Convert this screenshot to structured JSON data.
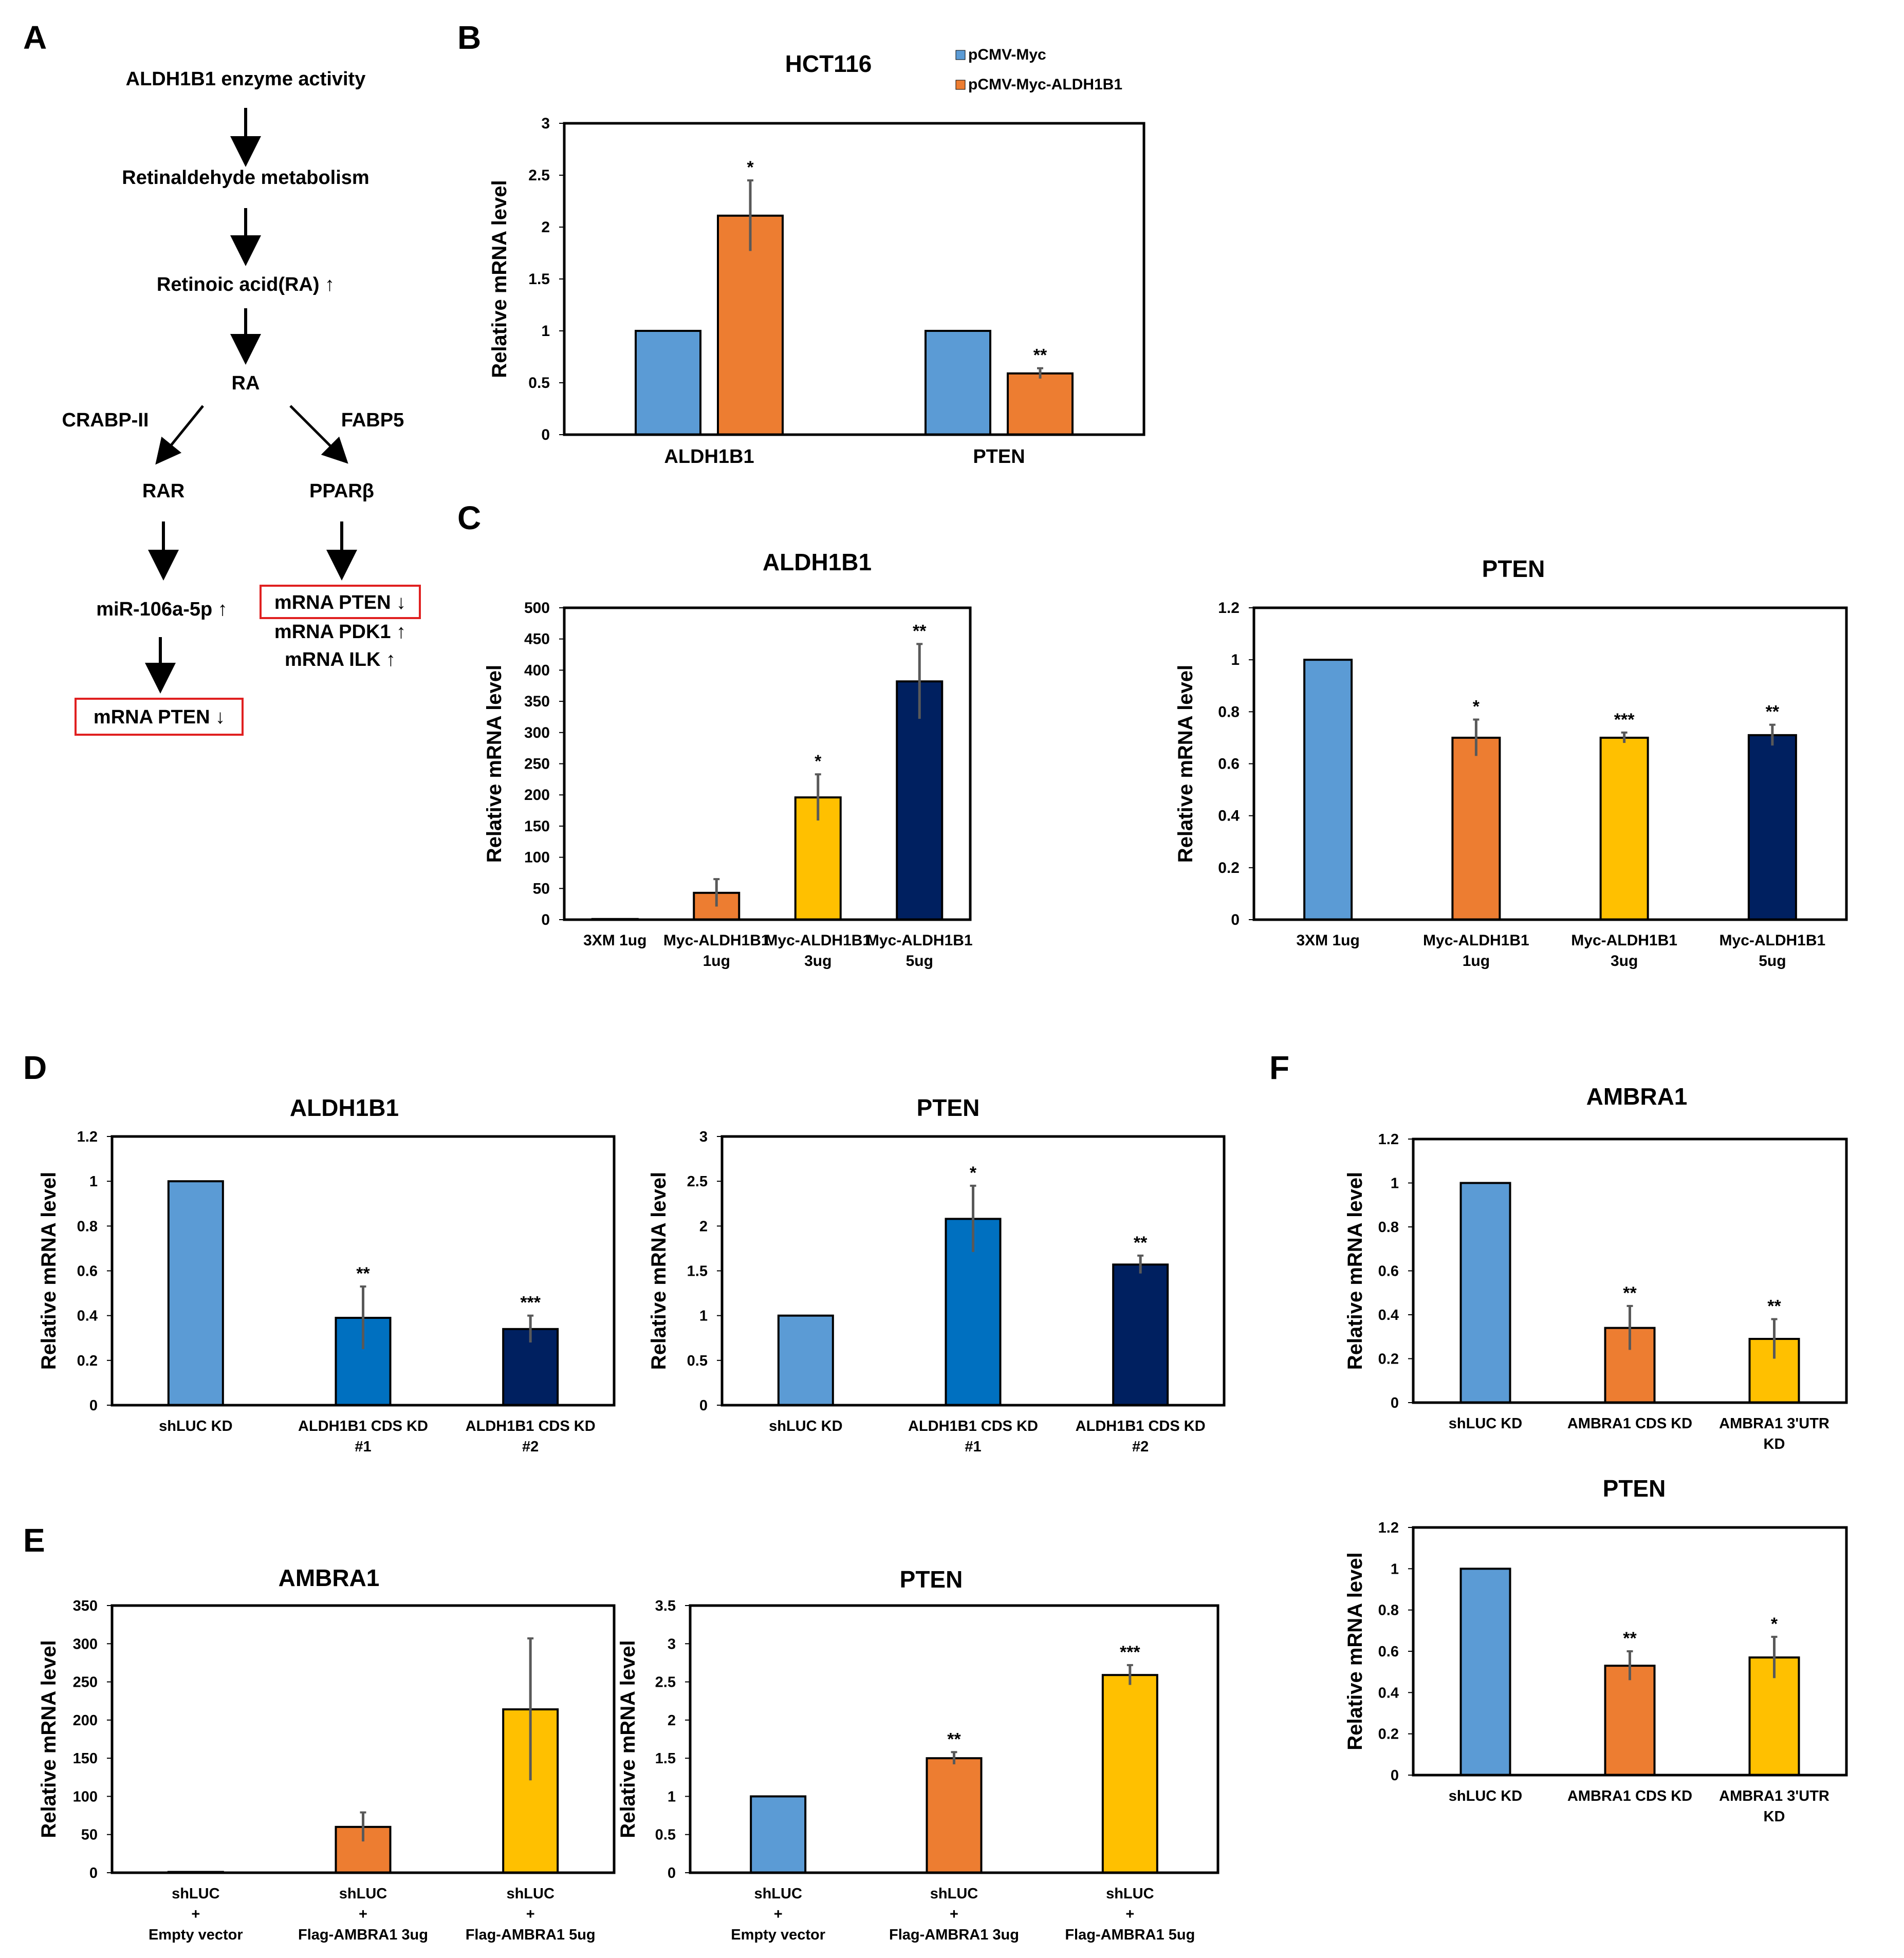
{
  "panel_letters": [
    "A",
    "B",
    "C",
    "D",
    "E",
    "F"
  ],
  "pathway": {
    "nodes": [
      "ALDH1B1 enzyme activity",
      "Retinaldehyde metabolism",
      "Retinoic acid(RA) ↑",
      "RA",
      "RAR",
      "PPARβ",
      "miR-106a-5p ↑",
      "mRNA PTEN ↓",
      "mRNA PTEN ↓",
      "mRNA PDK1 ↑",
      "mRNA ILK ↑"
    ],
    "edge_labels": [
      "CRABP-II",
      "FABP5"
    ],
    "highlight_color": "#e02020"
  },
  "colors": {
    "light_blue": "#5b9bd5",
    "orange": "#ed7d31",
    "yellow": "#ffc000",
    "navy": "#002060",
    "mid_blue": "#0070c0",
    "error_bar": "#595959"
  },
  "chart_data": [
    {
      "id": "B",
      "type": "bar",
      "title": "HCT116",
      "ylabel": "Relative mRNA level",
      "categories": [
        "ALDH1B1",
        "PTEN"
      ],
      "series": [
        {
          "name": "pCMV-Myc",
          "color": "#5b9bd5",
          "values": [
            1,
            1
          ],
          "errors": [
            0,
            0
          ],
          "sig": [
            "",
            ""
          ]
        },
        {
          "name": "pCMV-Myc-ALDH1B1",
          "color": "#ed7d31",
          "values": [
            2.11,
            0.59
          ],
          "errors": [
            0.34,
            0.05
          ],
          "sig": [
            "*",
            "**"
          ]
        }
      ],
      "ylim": [
        0,
        3
      ],
      "yticks": [
        "0",
        "0.5",
        "1",
        "1.5",
        "2",
        "2.5",
        "3"
      ],
      "legend": "top-right"
    },
    {
      "id": "C1",
      "type": "bar",
      "title": "ALDH1B1",
      "ylabel": "Relative mRNA level",
      "categories": [
        [
          "3XM 1ug"
        ],
        [
          "Myc-ALDH1B1",
          "1ug"
        ],
        [
          "Myc-ALDH1B1",
          "3ug"
        ],
        [
          "Myc-ALDH1B1",
          "5ug"
        ]
      ],
      "values": [
        1,
        43,
        196,
        382
      ],
      "errors": [
        0,
        22,
        37,
        60
      ],
      "colors": [
        "#5b9bd5",
        "#ed7d31",
        "#ffc000",
        "#002060"
      ],
      "sig": [
        "",
        "",
        "*",
        "**"
      ],
      "ylim": [
        0,
        500
      ],
      "yticks": [
        "0",
        "50",
        "100",
        "150",
        "200",
        "250",
        "300",
        "350",
        "400",
        "450",
        "500"
      ]
    },
    {
      "id": "C2",
      "type": "bar",
      "title": "PTEN",
      "ylabel": "Relative mRNA level",
      "categories": [
        [
          "3XM 1ug"
        ],
        [
          "Myc-ALDH1B1",
          "1ug"
        ],
        [
          "Myc-ALDH1B1",
          "3ug"
        ],
        [
          "Myc-ALDH1B1",
          "5ug"
        ]
      ],
      "values": [
        1,
        0.7,
        0.7,
        0.71
      ],
      "errors": [
        0,
        0.07,
        0.02,
        0.04
      ],
      "colors": [
        "#5b9bd5",
        "#ed7d31",
        "#ffc000",
        "#002060"
      ],
      "sig": [
        "",
        "*",
        "***",
        "**"
      ],
      "ylim": [
        0,
        1.2
      ],
      "yticks": [
        "0",
        "0.2",
        "0.4",
        "0.6",
        "0.8",
        "1",
        "1.2"
      ]
    },
    {
      "id": "D1",
      "type": "bar",
      "title": "ALDH1B1",
      "ylabel": "Relative mRNA level",
      "categories": [
        [
          "shLUC KD"
        ],
        [
          "ALDH1B1 CDS KD",
          "#1"
        ],
        [
          "ALDH1B1 CDS KD",
          "#2"
        ]
      ],
      "values": [
        1,
        0.39,
        0.34
      ],
      "errors": [
        0,
        0.14,
        0.06
      ],
      "colors": [
        "#5b9bd5",
        "#0070c0",
        "#002060"
      ],
      "sig": [
        "",
        "**",
        "***"
      ],
      "ylim": [
        0,
        1.2
      ],
      "yticks": [
        "0",
        "0.2",
        "0.4",
        "0.6",
        "0.8",
        "1",
        "1.2"
      ]
    },
    {
      "id": "D2",
      "type": "bar",
      "title": "PTEN",
      "ylabel": "Relative mRNA level",
      "categories": [
        [
          "shLUC KD"
        ],
        [
          "ALDH1B1 CDS KD",
          "#1"
        ],
        [
          "ALDH1B1 CDS KD",
          "#2"
        ]
      ],
      "values": [
        1,
        2.08,
        1.57
      ],
      "errors": [
        0,
        0.37,
        0.1
      ],
      "colors": [
        "#5b9bd5",
        "#0070c0",
        "#002060"
      ],
      "sig": [
        "",
        "*",
        "**"
      ],
      "ylim": [
        0,
        3
      ],
      "yticks": [
        "0",
        "0.5",
        "1",
        "1.5",
        "2",
        "2.5",
        "3"
      ]
    },
    {
      "id": "E1",
      "type": "bar",
      "title": "AMBRA1",
      "ylabel": "Relative mRNA level",
      "categories": [
        [
          "shLUC",
          "+",
          "Empty vector"
        ],
        [
          "shLUC",
          "+",
          "Flag-AMBRA1 3ug"
        ],
        [
          "shLUC",
          "+",
          "Flag-AMBRA1 5ug"
        ]
      ],
      "values": [
        1,
        60,
        214
      ],
      "errors": [
        0,
        19,
        93
      ],
      "colors": [
        "#5b9bd5",
        "#ed7d31",
        "#ffc000"
      ],
      "sig": [
        "",
        "",
        ""
      ],
      "ylim": [
        0,
        350
      ],
      "yticks": [
        "0",
        "50",
        "100",
        "150",
        "200",
        "250",
        "300",
        "350"
      ]
    },
    {
      "id": "E2",
      "type": "bar",
      "title": "PTEN",
      "ylabel": "Relative mRNA level",
      "categories": [
        [
          "shLUC",
          "+",
          "Empty vector"
        ],
        [
          "shLUC",
          "+",
          "Flag-AMBRA1 3ug"
        ],
        [
          "shLUC",
          "+",
          "Flag-AMBRA1 5ug"
        ]
      ],
      "values": [
        1,
        1.5,
        2.59
      ],
      "errors": [
        0,
        0.08,
        0.13
      ],
      "colors": [
        "#5b9bd5",
        "#ed7d31",
        "#ffc000"
      ],
      "sig": [
        "",
        "**",
        "***"
      ],
      "ylim": [
        0,
        3.5
      ],
      "yticks": [
        "0",
        "0.5",
        "1",
        "1.5",
        "2",
        "2.5",
        "3",
        "3.5"
      ]
    },
    {
      "id": "F1",
      "type": "bar",
      "title": "AMBRA1",
      "ylabel": "Relative mRNA level",
      "categories": [
        [
          "shLUC KD"
        ],
        [
          "AMBRA1 CDS KD"
        ],
        [
          "AMBRA1 3'UTR",
          "KD"
        ]
      ],
      "values": [
        1,
        0.34,
        0.29
      ],
      "errors": [
        0,
        0.1,
        0.09
      ],
      "colors": [
        "#5b9bd5",
        "#ed7d31",
        "#ffc000"
      ],
      "sig": [
        "",
        "**",
        "**"
      ],
      "ylim": [
        0,
        1.2
      ],
      "yticks": [
        "0",
        "0.2",
        "0.4",
        "0.6",
        "0.8",
        "1",
        "1.2"
      ]
    },
    {
      "id": "F2",
      "type": "bar",
      "title": "PTEN",
      "ylabel": "Relative mRNA level",
      "categories": [
        [
          "shLUC KD"
        ],
        [
          "AMBRA1 CDS KD"
        ],
        [
          "AMBRA1 3'UTR",
          "KD"
        ]
      ],
      "values": [
        1,
        0.53,
        0.57
      ],
      "errors": [
        0,
        0.07,
        0.1
      ],
      "colors": [
        "#5b9bd5",
        "#ed7d31",
        "#ffc000"
      ],
      "sig": [
        "",
        "**",
        "*"
      ],
      "ylim": [
        0,
        1.2
      ],
      "yticks": [
        "0",
        "0.2",
        "0.4",
        "0.6",
        "0.8",
        "1",
        "1.2"
      ]
    }
  ]
}
